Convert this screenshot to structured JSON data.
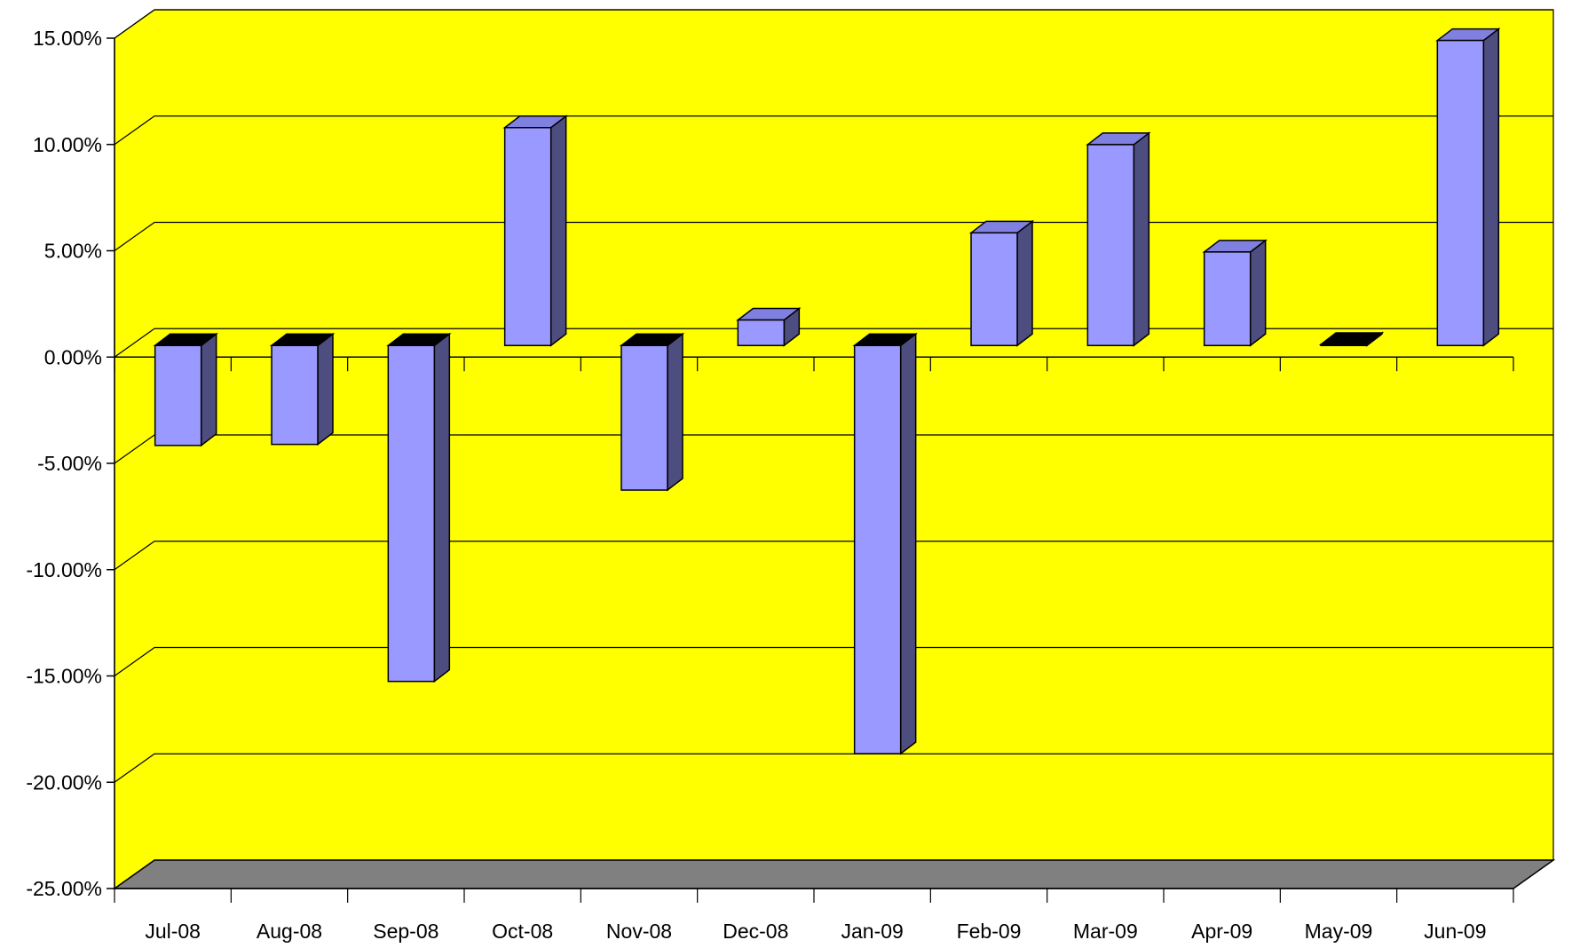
{
  "chart_data": {
    "type": "bar",
    "style": "3d-column",
    "title": "",
    "xlabel": "",
    "ylabel": "",
    "categories": [
      "Jul-08",
      "Aug-08",
      "Sep-08",
      "Oct-08",
      "Nov-08",
      "Dec-08",
      "Jan-09",
      "Feb-09",
      "Mar-09",
      "Apr-09",
      "May-09",
      "Jun-09"
    ],
    "values": [
      -4.7,
      -4.65,
      -15.8,
      10.25,
      -6.8,
      1.2,
      -19.2,
      5.3,
      9.45,
      4.4,
      0.05,
      14.35
    ],
    "ylim": [
      -25,
      15
    ],
    "y_ticks": [
      "-25.00%",
      "-20.00%",
      "-15.00%",
      "-10.00%",
      "-5.00%",
      "0.00%",
      "5.00%",
      "10.00%",
      "15.00%"
    ],
    "grid": true,
    "legend": "none",
    "colors": {
      "wall": "#ffff00",
      "floor": "#808080",
      "bar_front": "#9999ff",
      "bar_side": "#4d4d80",
      "bar_top": "#8080e0",
      "bar_top_negative": "#000000"
    }
  }
}
